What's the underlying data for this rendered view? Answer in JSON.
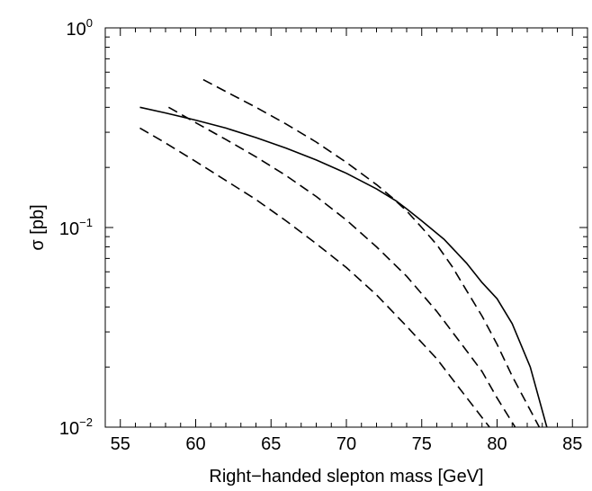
{
  "chart_data": {
    "type": "line",
    "title": "",
    "xlabel": "Right−handed slepton mass  [GeV]",
    "ylabel": "σ  [pb]",
    "xlim": [
      54,
      86
    ],
    "ylim": [
      0.01,
      1
    ],
    "yscale": "log",
    "grid": false,
    "legend": "none",
    "xticks": [
      {
        "value": 55,
        "label": "55"
      },
      {
        "value": 60,
        "label": "60"
      },
      {
        "value": 65,
        "label": "65"
      },
      {
        "value": 70,
        "label": "70"
      },
      {
        "value": 75,
        "label": "75"
      },
      {
        "value": 80,
        "label": "80"
      },
      {
        "value": 85,
        "label": "85"
      }
    ],
    "yticks": [
      {
        "value": 1,
        "base": "10",
        "exp": "0"
      },
      {
        "value": 0.1,
        "base": "10",
        "exp": "−1"
      },
      {
        "value": 0.01,
        "base": "10",
        "exp": "−2"
      }
    ],
    "series": [
      {
        "style": "solid",
        "x": [
          56.3,
          58,
          60,
          62,
          64,
          66,
          68,
          70,
          72,
          73.3,
          74,
          75,
          76.5,
          78,
          79,
          80,
          81,
          82.2,
          83.3
        ],
        "y": [
          0.4,
          0.375,
          0.345,
          0.315,
          0.282,
          0.25,
          0.218,
          0.187,
          0.156,
          0.136,
          0.124,
          0.108,
          0.087,
          0.066,
          0.053,
          0.044,
          0.033,
          0.02,
          0.01
        ]
      },
      {
        "style": "dashed",
        "x": [
          60.5,
          62,
          64,
          66,
          68,
          70,
          72,
          73,
          74,
          75,
          76,
          77,
          78,
          79,
          80,
          81,
          82,
          82.8
        ],
        "y": [
          0.55,
          0.48,
          0.4,
          0.33,
          0.268,
          0.212,
          0.164,
          0.142,
          0.121,
          0.1,
          0.082,
          0.064,
          0.048,
          0.036,
          0.026,
          0.018,
          0.013,
          0.01
        ]
      },
      {
        "style": "dashed",
        "x": [
          58.2,
          60,
          62,
          64,
          66,
          68,
          70,
          72,
          74,
          76,
          78,
          79,
          80,
          81.2
        ],
        "y": [
          0.4,
          0.335,
          0.276,
          0.226,
          0.182,
          0.143,
          0.109,
          0.08,
          0.057,
          0.038,
          0.024,
          0.019,
          0.014,
          0.01
        ]
      },
      {
        "style": "dashed",
        "x": [
          56.3,
          58,
          60,
          62,
          64,
          66,
          68,
          70,
          72,
          74,
          76,
          78,
          79.5
        ],
        "y": [
          0.315,
          0.265,
          0.214,
          0.172,
          0.138,
          0.108,
          0.083,
          0.063,
          0.046,
          0.032,
          0.022,
          0.014,
          0.01
        ]
      }
    ]
  }
}
